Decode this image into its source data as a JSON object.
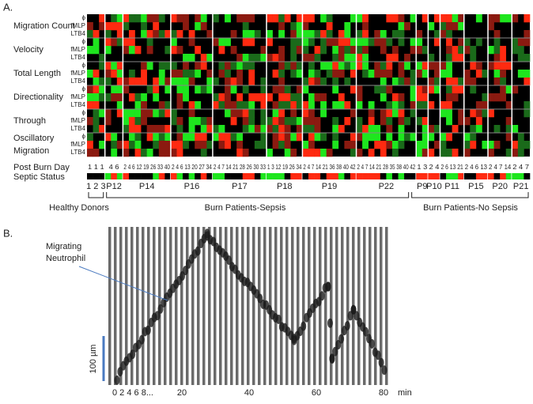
{
  "panel_a": {
    "label": "A.",
    "features": [
      {
        "label": "Migration Count",
        "rows": [
          "ϕ",
          "fMLP",
          "LTB4"
        ]
      },
      {
        "label": "Velocity",
        "rows": [
          "ϕ",
          "fMLP",
          "LTB4"
        ]
      },
      {
        "label": "Total Length",
        "rows": [
          "ϕ",
          "fMLP",
          "LTB4"
        ]
      },
      {
        "label": "Directionality",
        "rows": [
          "ϕ",
          "fMLP",
          "LTB4"
        ]
      },
      {
        "label": "Through",
        "rows": [
          "ϕ",
          "fMLP",
          "LTB4"
        ]
      },
      {
        "label": "Oscillatory Migration",
        "rows": [
          "ϕ",
          "fMLP",
          "LTB4"
        ]
      }
    ],
    "post_burn_day_label": "Post Burn Day",
    "septic_status_label": "Septic Status",
    "patients": [
      {
        "name": "1 2 3",
        "days": "1 1 1"
      },
      {
        "name": "P12",
        "days": "4 6"
      },
      {
        "name": "P14",
        "days": "2 4 6 12 19 26 33 40"
      },
      {
        "name": "P16",
        "days": "2 4 6 13 20 27 34"
      },
      {
        "name": "P17",
        "days": "2 4 7 14 21 28 26 30 33"
      },
      {
        "name": "P18",
        "days": "1 3 12 19 26 34"
      },
      {
        "name": "P19",
        "days": "2 4 7 14 21 36 38 40 42"
      },
      {
        "name": "P22",
        "days": "2 4 7 14 21 28 35 38 40 42"
      },
      {
        "name": "P9",
        "days": "1 3"
      },
      {
        "name": "P10",
        "days": "2 4"
      },
      {
        "name": "P11",
        "days": "2 6 13 21"
      },
      {
        "name": "P15",
        "days": "2 4 6 13"
      },
      {
        "name": "P20",
        "days": "2 4 7 14"
      },
      {
        "name": "P21",
        "days": "2 4 7"
      }
    ],
    "groups": [
      "Healthy Donors",
      "Burn Patients-Sepsis",
      "Burn Patients-No Sepsis"
    ]
  },
  "panel_b": {
    "label": "B.",
    "annotation": [
      "Migrating",
      "Neutrophil"
    ],
    "scale_bar": "100 µm",
    "time_labels": [
      "0 2  4 6  8...",
      "20",
      "40",
      "60",
      "80",
      "min"
    ]
  }
}
